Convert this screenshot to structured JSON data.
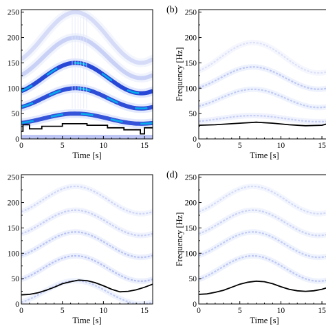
{
  "chart_data": [
    {
      "panel": "a",
      "panel_label": "",
      "type": "heatmap",
      "xlabel": "Time [s]",
      "ylabel": "",
      "xlim": [
        0,
        16
      ],
      "ylim": [
        0,
        255
      ],
      "xticks": [
        "0",
        "5",
        "10",
        "15"
      ],
      "yticks": [
        "0",
        "50",
        "100",
        "150",
        "200",
        "250"
      ],
      "colormap": [
        "#ffffff",
        "#dde4fb",
        "#8f9fec",
        "#2747d6",
        "#0a2fc0",
        "#00b7ee"
      ],
      "harmonic_ridges": [
        {
          "f0": 40,
          "amp": 10,
          "intensity": 0.9
        },
        {
          "f0": 80,
          "amp": 20,
          "intensity": 0.95
        },
        {
          "f0": 120,
          "amp": 30,
          "intensity": 1.0
        },
        {
          "f0": 160,
          "amp": 40,
          "intensity": 0.25
        },
        {
          "f0": 200,
          "amp": 50,
          "intensity": 0.12
        }
      ],
      "tracking_line": {
        "x": [
          0,
          0.2,
          0.2,
          1,
          1,
          2.5,
          2.5,
          5,
          5,
          8,
          8,
          10.5,
          10.5,
          12.5,
          12.5,
          14.5,
          14.5,
          15,
          15,
          16
        ],
        "y": [
          15,
          15,
          28,
          28,
          20,
          20,
          25,
          25,
          30,
          30,
          27,
          27,
          22,
          22,
          18,
          18,
          10,
          10,
          22,
          22
        ]
      }
    },
    {
      "panel": "b",
      "panel_label": "(b)",
      "type": "heatmap",
      "xlabel": "Time [s]",
      "ylabel": "Frequency [Hz]",
      "xlim": [
        0,
        16
      ],
      "ylim": [
        0,
        255
      ],
      "xticks": [
        "0",
        "5",
        "10",
        "15"
      ],
      "yticks": [
        "0",
        "50",
        "100",
        "150",
        "200",
        "250"
      ],
      "colormap": [
        "#ffffff",
        "#dde4fb",
        "#8f9fec",
        "#2747d6",
        "#0a2fc0",
        "#00b7ee"
      ],
      "harmonic_ridges": [
        {
          "f0": 40,
          "amp": 6,
          "intensity": 0.3
        },
        {
          "f0": 80,
          "amp": 18,
          "intensity": 0.35
        },
        {
          "f0": 120,
          "amp": 22,
          "intensity": 0.4
        },
        {
          "f0": 160,
          "amp": 30,
          "intensity": 0.05
        }
      ],
      "tracking_line": {
        "x": [
          0,
          2,
          5,
          7,
          9,
          11,
          13,
          15,
          16
        ],
        "y": [
          27,
          28,
          31,
          33,
          31,
          28,
          26,
          27,
          31
        ]
      }
    },
    {
      "panel": "c",
      "panel_label": "",
      "type": "heatmap",
      "xlabel": "Time [s]",
      "ylabel": "",
      "xlim": [
        0,
        16
      ],
      "ylim": [
        0,
        255
      ],
      "xticks": [
        "0",
        "5",
        "10",
        "15"
      ],
      "yticks": [
        "0",
        "50",
        "100",
        "150",
        "200",
        "250"
      ],
      "colormap": [
        "#ffffff",
        "#dde4fb",
        "#8f9fec",
        "#2747d6",
        "#0a2fc0",
        "#00b7ee"
      ],
      "harmonic_ridges": [
        {
          "f0": 23,
          "amp": 23,
          "intensity": 0.35
        },
        {
          "f0": 70,
          "amp": 25,
          "intensity": 0.5
        },
        {
          "f0": 117,
          "amp": 25,
          "intensity": 0.45
        },
        {
          "f0": 160,
          "amp": 25,
          "intensity": 0.3
        },
        {
          "f0": 205,
          "amp": 27,
          "intensity": 0.2
        }
      ],
      "tracking_line": {
        "x": [
          0,
          1,
          2,
          3,
          4,
          5,
          6,
          7,
          8,
          9,
          10,
          11,
          12,
          13,
          14,
          15,
          16
        ],
        "y": [
          18,
          19,
          22,
          27,
          33,
          40,
          44,
          47,
          46,
          42,
          36,
          29,
          24,
          25,
          28,
          33,
          39
        ]
      }
    },
    {
      "panel": "d",
      "panel_label": "(d)",
      "type": "heatmap",
      "xlabel": "Time [s]",
      "ylabel": "Frequency [Hz]",
      "xlim": [
        0,
        16
      ],
      "ylim": [
        0,
        255
      ],
      "xticks": [
        "0",
        "5",
        "10",
        "15"
      ],
      "yticks": [
        "0",
        "50",
        "100",
        "150",
        "200",
        "250"
      ],
      "colormap": [
        "#ffffff",
        "#dde4fb",
        "#8f9fec",
        "#2747d6",
        "#0a2fc0",
        "#00b7ee"
      ],
      "harmonic_ridges": [
        {
          "f0": 70,
          "amp": 25,
          "intensity": 0.4
        },
        {
          "f0": 117,
          "amp": 25,
          "intensity": 0.35
        },
        {
          "f0": 160,
          "amp": 25,
          "intensity": 0.25
        },
        {
          "f0": 205,
          "amp": 27,
          "intensity": 0.15
        }
      ],
      "tracking_line": {
        "x": [
          0,
          1,
          2,
          3,
          4,
          5,
          6,
          7,
          8,
          9,
          10,
          11,
          12,
          13,
          14,
          15,
          16
        ],
        "y": [
          19,
          20,
          23,
          27,
          33,
          39,
          43,
          45,
          44,
          40,
          34,
          29,
          26,
          25,
          26,
          29,
          34
        ]
      }
    }
  ]
}
